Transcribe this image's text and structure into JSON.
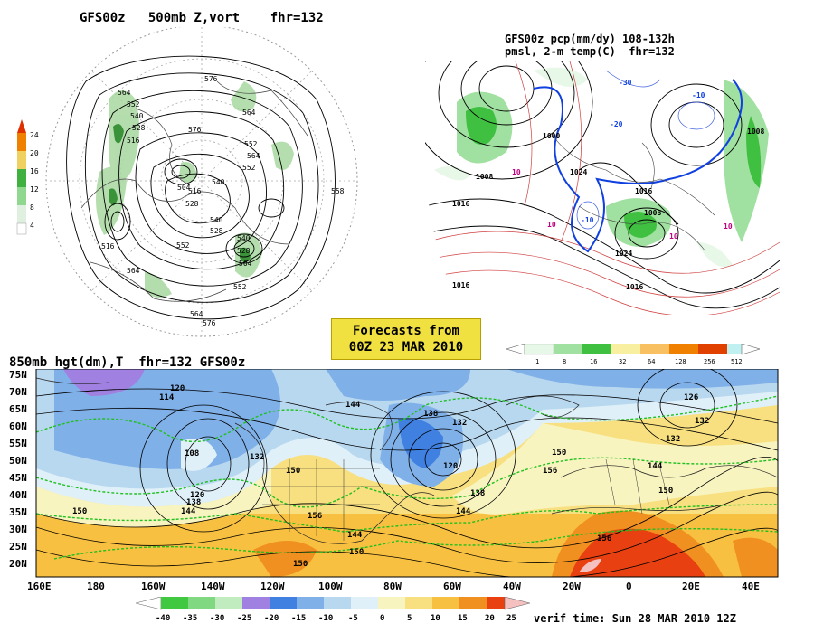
{
  "panel_top_left": {
    "title": "GFS00z   500mb Z,vort    fhr=132",
    "contour_labels": [
      "576",
      "564",
      "552",
      "540",
      "528",
      "516",
      "504",
      "516",
      "528",
      "540",
      "552",
      "564",
      "576",
      "564",
      "552",
      "540",
      "528",
      "552",
      "564",
      "576",
      "540",
      "528",
      "504",
      "516",
      "552",
      "564",
      "558"
    ],
    "colorbar_ticks": [
      "24",
      "20",
      "16",
      "12",
      "8",
      "4"
    ],
    "colorbar_colors": [
      "#e03000",
      "#f08000",
      "#f0d060",
      "#40b040",
      "#90d890",
      "#e0f0e0"
    ]
  },
  "panel_top_right": {
    "title_line1": "GFS00z pcp(mm/dy) 108-132h",
    "title_line2": "pmsl, 2-m temp(C)  fhr=132",
    "pressure_labels": [
      "1008",
      "1016",
      "1024",
      "1016",
      "1008",
      "1016",
      "1024",
      "1008",
      "1016",
      "1000"
    ],
    "temp_labels": [
      "10",
      "10",
      "10",
      "-10",
      "-20",
      "-30",
      "-10",
      "10"
    ],
    "colorbar_ticks": [
      "1",
      "8",
      "16",
      "32",
      "64",
      "128",
      "256",
      "512"
    ],
    "colorbar_colors": [
      "#e8f8e8",
      "#a0e0a0",
      "#40c040",
      "#f8f0a0",
      "#f8c060",
      "#f08000",
      "#e04000",
      "#c0f0f0"
    ]
  },
  "forecast_box": {
    "line1": "Forecasts from",
    "line2": "00Z 23 MAR 2010"
  },
  "panel_bottom": {
    "title": "850mb hgt(dm),T  fhr=132 GFS00z",
    "lat_labels": [
      "75N",
      "70N",
      "65N",
      "60N",
      "55N",
      "50N",
      "45N",
      "40N",
      "35N",
      "30N",
      "25N",
      "20N"
    ],
    "lon_labels": [
      "160E",
      "180",
      "160W",
      "140W",
      "120W",
      "100W",
      "80W",
      "60W",
      "40W",
      "20W",
      "0",
      "20E",
      "40E"
    ],
    "height_labels": [
      "120",
      "114",
      "108",
      "120",
      "132",
      "144",
      "138",
      "132",
      "120",
      "138",
      "144",
      "150",
      "156",
      "144",
      "150",
      "150",
      "156",
      "144",
      "138",
      "150",
      "150",
      "132",
      "126",
      "132",
      "144",
      "150",
      "156"
    ],
    "colorbar_ticks": [
      "-40",
      "-35",
      "-30",
      "-25",
      "-20",
      "-15",
      "-10",
      "-5",
      "0",
      "5",
      "10",
      "15",
      "20",
      "25"
    ],
    "colorbar_colors": [
      "#40c840",
      "#80d880",
      "#c0ecc0",
      "#a080e0",
      "#4080e0",
      "#80b0e8",
      "#b8d8f0",
      "#e0f0f8",
      "#f8f4c0",
      "#f8e080",
      "#f8c040",
      "#f09020",
      "#e84010"
    ],
    "verif_time": "verif time: Sun 28 MAR 2010 12Z"
  }
}
